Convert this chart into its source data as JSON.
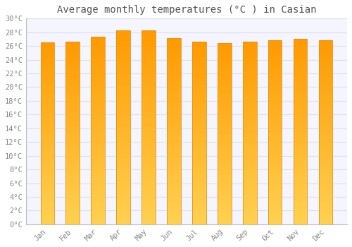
{
  "title": "Average monthly temperatures (°C ) in Casian",
  "months": [
    "Jan",
    "Feb",
    "Mar",
    "Apr",
    "May",
    "Jun",
    "Jul",
    "Aug",
    "Sep",
    "Oct",
    "Nov",
    "Dec"
  ],
  "values": [
    26.5,
    26.6,
    27.4,
    28.3,
    28.3,
    27.1,
    26.6,
    26.4,
    26.6,
    26.8,
    27.0,
    26.8
  ],
  "bar_color_main": "#FFAA00",
  "bar_color_top": "#FF9900",
  "bar_color_bottom": "#FFD966",
  "bar_edge_color": "#E8920A",
  "background_color": "#FFFFFF",
  "plot_bg_color": "#F5F5FF",
  "grid_color": "#DDDDEE",
  "ylim": [
    0,
    30
  ],
  "yticks": [
    0,
    2,
    4,
    6,
    8,
    10,
    12,
    14,
    16,
    18,
    20,
    22,
    24,
    26,
    28,
    30
  ],
  "title_fontsize": 10,
  "tick_fontsize": 7.5,
  "title_color": "#555555",
  "tick_color": "#888888"
}
